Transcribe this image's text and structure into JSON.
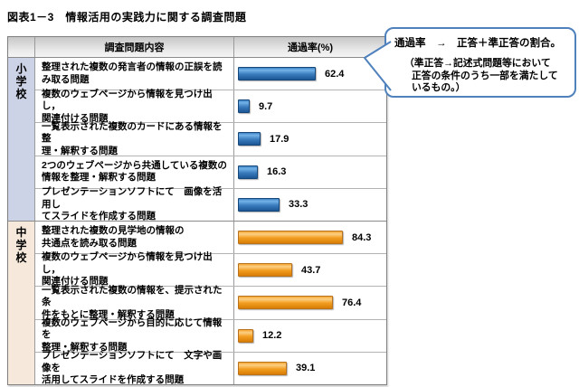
{
  "title": "図表1－3　情報活用の実践力に関する調査問題",
  "colors": {
    "elementary_bar": "#2e74b5",
    "junior_bar": "#f39c1f",
    "elementary_group_bg": "#ccd3e6",
    "junior_group_bg": "#f6e8da",
    "callout_border": "#4f81bd",
    "table_border": "#7f7f7f",
    "header_bg_top": "#c7c7c7",
    "header_bg_bottom": "#f4f4f4"
  },
  "table": {
    "header": {
      "content": "調査問題内容",
      "rate": "通過率(%)"
    },
    "groups": [
      {
        "label": "小学校",
        "bar_style": "blue",
        "group_bg": "#ccd3e6",
        "rows": [
          {
            "lines": [
              "整理された複数の発言者の情報の正誤を読",
              "み取る問題"
            ],
            "value": 62.4
          },
          {
            "lines": [
              "複数のウェブページから情報を見つけ出し，",
              "関連付ける問題"
            ],
            "value": 9.7
          },
          {
            "lines": [
              "一覧表示された複数のカードにある情報を整",
              "理・解釈する問題"
            ],
            "value": 17.9
          },
          {
            "lines": [
              "2つのウェブページから共通している複数の",
              "情報を整理・解釈する問題"
            ],
            "value": 16.3
          },
          {
            "lines": [
              "プレゼンテーションソフトにて　画像を活用し",
              "てスライドを作成する問題"
            ],
            "value": 33.3
          }
        ]
      },
      {
        "label": "中学校",
        "bar_style": "orange",
        "group_bg": "#f6e8da",
        "rows": [
          {
            "lines": [
              "整理された複数の見学地の情報の",
              "共通点を読み取る問題"
            ],
            "value": 84.3
          },
          {
            "lines": [
              "複数のウェブページから情報を見つけ出し，",
              "関連付ける問題"
            ],
            "value": 43.7
          },
          {
            "lines": [
              "一覧表示された複数の情報を、提示された条",
              "件をもとに整理・解釈する問題"
            ],
            "value": 76.4
          },
          {
            "lines": [
              "複数のウェブページから目的に応じて情報を",
              "整理・解釈する問題"
            ],
            "value": 12.2
          },
          {
            "lines": [
              "プレゼンテーションソフトにて　文字や画像を",
              "活用してスライドを作成する問題"
            ],
            "value": 39.1
          }
        ]
      }
    ]
  },
  "callout": {
    "line1": "通過率　→　正答＋準正答の割合。",
    "line2": "（準正答→記述式問題等において",
    "line3": "正答の条件のうち一部を満たして",
    "line4": "いるもの。）"
  },
  "chart_data": {
    "type": "bar",
    "orientation": "horizontal",
    "title": "図表1－3　情報活用の実践力に関する調査問題",
    "value_axis_label": "通過率(%)",
    "value_range": [
      0,
      100
    ],
    "series": [
      {
        "name": "小学校",
        "color": "#2e74b5",
        "categories": [
          "整理された複数の発言者の情報の正誤を読み取る問題",
          "複数のウェブページから情報を見つけ出し，関連付ける問題",
          "一覧表示された複数のカードにある情報を整理・解釈する問題",
          "2つのウェブページから共通している複数の情報を整理・解釈する問題",
          "プレゼンテーションソフトにて　画像を活用してスライドを作成する問題"
        ],
        "values": [
          62.4,
          9.7,
          17.9,
          16.3,
          33.3
        ]
      },
      {
        "name": "中学校",
        "color": "#f39c1f",
        "categories": [
          "整理された複数の見学地の情報の共通点を読み取る問題",
          "複数のウェブページから情報を見つけ出し，関連付ける問題",
          "一覧表示された複数の情報を、提示された条件をもとに整理・解釈する問題",
          "複数のウェブページから目的に応じて情報を整理・解釈する問題",
          "プレゼンテーションソフトにて　文字や画像を活用してスライドを作成する問題"
        ],
        "values": [
          84.3,
          43.7,
          76.4,
          12.2,
          39.1
        ]
      }
    ],
    "annotation": "通過率 → 正答＋準正答の割合。（準正答→記述式問題等において正答の条件のうち一部を満たしているもの。）"
  }
}
